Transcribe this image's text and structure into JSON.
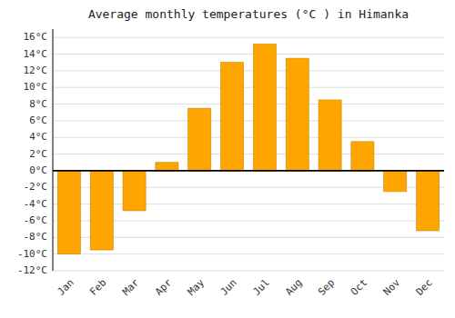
{
  "chart_data": {
    "type": "bar",
    "title": "Average monthly temperatures (°C ) in Himanka",
    "categories": [
      "Jan",
      "Feb",
      "Mar",
      "Apr",
      "May",
      "Jun",
      "Jul",
      "Aug",
      "Sep",
      "Oct",
      "Nov",
      "Dec"
    ],
    "values": [
      -10.0,
      -9.5,
      -4.8,
      1.0,
      7.5,
      13.0,
      15.2,
      13.5,
      8.5,
      3.5,
      -2.5,
      -7.2
    ],
    "color": "#FFA500",
    "ylim": [
      -12,
      17
    ],
    "yticks": [
      {
        "value": -12,
        "label": "-12°C"
      },
      {
        "value": -10,
        "label": "-10°C"
      },
      {
        "value": -8,
        "label": "-8°C"
      },
      {
        "value": -6,
        "label": "-6°C"
      },
      {
        "value": -4,
        "label": "-4°C"
      },
      {
        "value": -2,
        "label": "-2°C"
      },
      {
        "value": 0,
        "label": "0°C"
      },
      {
        "value": 2,
        "label": "2°C"
      },
      {
        "value": 4,
        "label": "4°C"
      },
      {
        "value": 6,
        "label": "6°C"
      },
      {
        "value": 8,
        "label": "8°C"
      },
      {
        "value": 10,
        "label": "10°C"
      },
      {
        "value": 12,
        "label": "12°C"
      },
      {
        "value": 14,
        "label": "14°C"
      },
      {
        "value": 16,
        "label": "16°C"
      }
    ],
    "grid": true
  }
}
